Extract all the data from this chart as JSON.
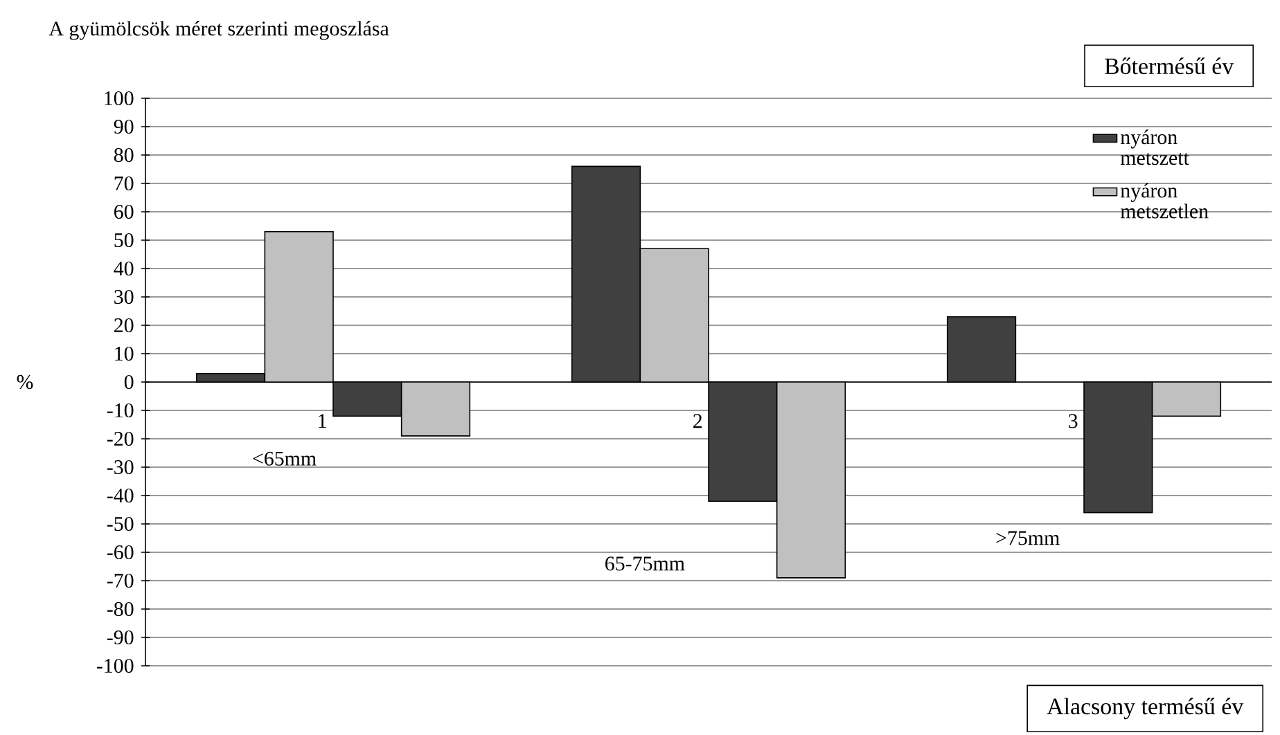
{
  "chart_data": {
    "type": "bar",
    "title": "A gyümölcsök méret szerinti megoszlása",
    "ylabel": "%",
    "categories": [
      "1",
      "2",
      "3"
    ],
    "series": [
      {
        "name": "nyáron metszett",
        "color": "#404040",
        "values": [
          3,
          76,
          23
        ]
      },
      {
        "name": "nyáron metszetlen",
        "color": "#c0c0c0",
        "values": [
          53,
          47,
          null
        ]
      },
      {
        "color": "#404040",
        "values": [
          -12,
          -42,
          -46
        ]
      },
      {
        "color": "#c0c0c0",
        "values": [
          -19,
          -69,
          -12
        ]
      }
    ],
    "ylim": [
      -100,
      100
    ],
    "yticks": [
      -100,
      -90,
      -80,
      -70,
      -60,
      -50,
      -40,
      -30,
      -20,
      -10,
      0,
      10,
      20,
      30,
      40,
      50,
      60,
      70,
      80,
      90,
      100
    ],
    "grid": "y",
    "legend": "top right",
    "annotations": [
      "<65mm",
      "65-75mm",
      ">75mm",
      "Bőtermésű év",
      "Alacsony termésű év"
    ]
  }
}
